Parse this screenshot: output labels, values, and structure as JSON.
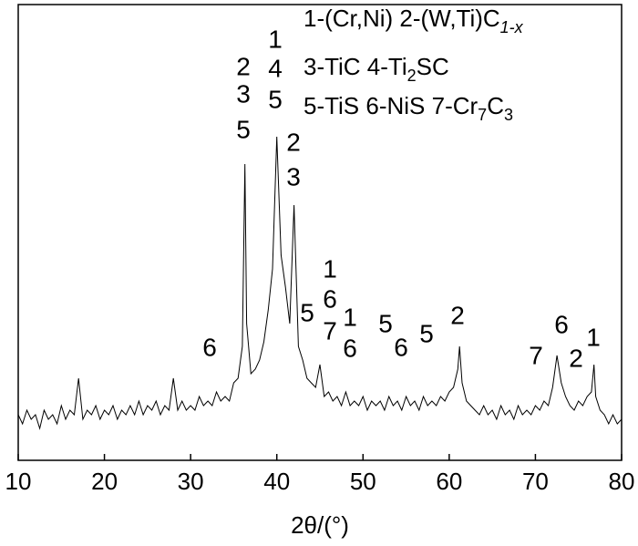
{
  "chart_data": {
    "type": "line",
    "xlabel": "2θ/(°)",
    "xlim": [
      10,
      80
    ],
    "xticks": [
      10,
      20,
      30,
      40,
      50,
      60,
      70,
      80
    ],
    "ylim": [
      0,
      100
    ],
    "color": "#000000",
    "legend_lines": [
      [
        "1-(Cr,Ni) 2-(W,Ti)C",
        "1-x"
      ],
      [
        "3-TiC 4-Ti",
        "2",
        "SC"
      ],
      [
        "5-TiS 6-NiS 7-Cr",
        "7",
        "C",
        "3"
      ]
    ],
    "annotations": [
      "2",
      "3",
      "5",
      "1",
      "4",
      "5",
      "2",
      "3",
      "5",
      "6",
      "1",
      "6",
      "7",
      "1",
      "6",
      "5",
      "6",
      "5",
      "2",
      "7",
      "6",
      "2",
      "1"
    ],
    "x": [
      10,
      10.5,
      11,
      11.5,
      12,
      12.5,
      13,
      13.5,
      14,
      14.5,
      15,
      15.5,
      16,
      16.5,
      17,
      17.5,
      18,
      18.5,
      19,
      19.5,
      20,
      20.5,
      21,
      21.5,
      22,
      22.5,
      23,
      23.5,
      24,
      24.5,
      25,
      25.5,
      26,
      26.5,
      27,
      27.5,
      28,
      28.5,
      29,
      29.5,
      30,
      30.5,
      31,
      31.5,
      32,
      32.5,
      33,
      33.5,
      34,
      34.5,
      35,
      35.5,
      36,
      36.3,
      36.5,
      37,
      37.5,
      38,
      38.5,
      39,
      39.5,
      40,
      40.5,
      41,
      41.5,
      42,
      42.5,
      43,
      43.5,
      44,
      44.5,
      45,
      45.5,
      46,
      46.5,
      47,
      47.5,
      48,
      48.5,
      49,
      49.5,
      50,
      50.5,
      51,
      51.5,
      52,
      52.5,
      53,
      53.5,
      54,
      54.5,
      55,
      55.5,
      56,
      56.5,
      57,
      57.5,
      58,
      58.5,
      59,
      59.5,
      60,
      60.5,
      61,
      61.2,
      61.5,
      62,
      62.5,
      63,
      63.5,
      64,
      64.5,
      65,
      65.5,
      66,
      66.5,
      67,
      67.5,
      68,
      68.5,
      69,
      69.5,
      70,
      70.5,
      71,
      71.5,
      72,
      72.5,
      73,
      73.5,
      74,
      74.5,
      75,
      75.5,
      76,
      76.5,
      76.8,
      77,
      77.5,
      78,
      78.5,
      79,
      79.5,
      80
    ],
    "values": [
      10,
      8,
      11,
      9,
      10,
      7,
      11,
      9,
      10,
      8,
      12,
      9,
      11,
      10,
      18,
      9,
      11,
      10,
      12,
      9,
      11,
      10,
      12,
      9,
      11,
      10,
      12,
      10,
      13,
      10,
      12,
      11,
      13,
      10,
      12,
      11,
      18,
      11,
      13,
      11,
      12,
      11,
      14,
      12,
      13,
      12,
      15,
      13,
      14,
      13,
      17,
      18,
      25,
      65,
      30,
      19,
      20,
      22,
      26,
      33,
      42,
      71,
      45,
      38,
      30,
      56,
      25,
      22,
      18,
      17,
      16,
      21,
      14,
      15,
      13,
      14,
      12,
      15,
      12,
      13,
      12,
      14,
      11,
      13,
      12,
      13,
      11,
      14,
      12,
      13,
      11,
      14,
      12,
      13,
      11,
      14,
      12,
      13,
      12,
      14,
      13,
      15,
      16,
      20,
      25,
      17,
      13,
      12,
      11,
      10,
      12,
      10,
      11,
      9,
      12,
      10,
      11,
      9,
      12,
      10,
      11,
      10,
      12,
      11,
      13,
      12,
      16,
      23,
      17,
      14,
      12,
      11,
      13,
      12,
      14,
      15,
      21,
      14,
      11,
      10,
      8,
      10,
      8,
      9
    ]
  }
}
